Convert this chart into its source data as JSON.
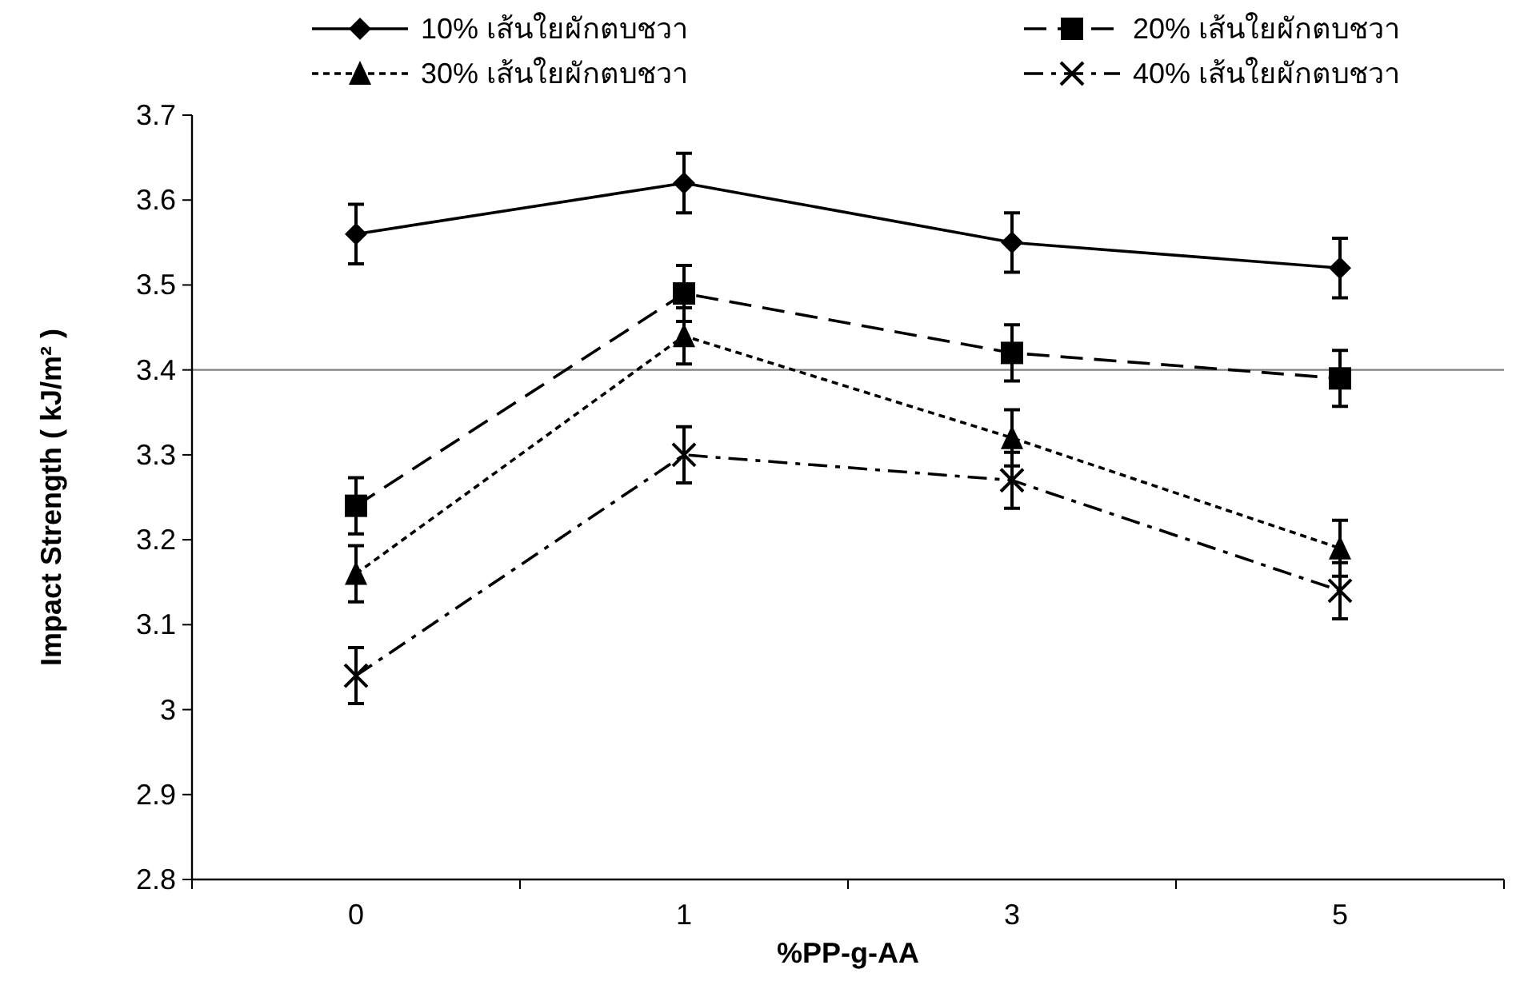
{
  "chart_data": {
    "type": "line",
    "categories": [
      "0",
      "1",
      "3",
      "5"
    ],
    "xlabel": "%PP-g-AA",
    "ylabel": "Impact Strength ( kJ/m² )",
    "ylim": [
      2.8,
      3.7
    ],
    "yticks": [
      2.8,
      2.9,
      3,
      3.1,
      3.2,
      3.3,
      3.4,
      3.5,
      3.6,
      3.7
    ],
    "grid": false,
    "legend": "top",
    "ref_lines": [
      {
        "axis": "y",
        "value": 3.4,
        "color": "#808080",
        "line_style": "solid"
      }
    ],
    "series": [
      {
        "name": "10% เส้นใยผักตบชวา",
        "color": "#000000",
        "marker": "diamond",
        "line_style": "solid",
        "values": [
          3.56,
          3.62,
          3.55,
          3.52
        ],
        "errors": [
          0.035,
          0.035,
          0.035,
          0.035
        ]
      },
      {
        "name": "20% เส้นใยผักตบชวา",
        "color": "#000000",
        "marker": "square",
        "line_style": "dashed",
        "values": [
          3.24,
          3.49,
          3.42,
          3.39
        ],
        "errors": [
          0.033,
          0.033,
          0.033,
          0.033
        ]
      },
      {
        "name": "30% เส้นใยผักตบชวา",
        "color": "#000000",
        "marker": "triangle",
        "line_style": "dotted",
        "values": [
          3.16,
          3.44,
          3.32,
          3.19
        ],
        "errors": [
          0.033,
          0.033,
          0.033,
          0.033
        ]
      },
      {
        "name": "40% เส้นใยผักตบชวา",
        "color": "#000000",
        "marker": "cross",
        "line_style": "dashdot",
        "values": [
          3.04,
          3.3,
          3.27,
          3.14
        ],
        "errors": [
          0.033,
          0.033,
          0.033,
          0.033
        ]
      }
    ]
  }
}
